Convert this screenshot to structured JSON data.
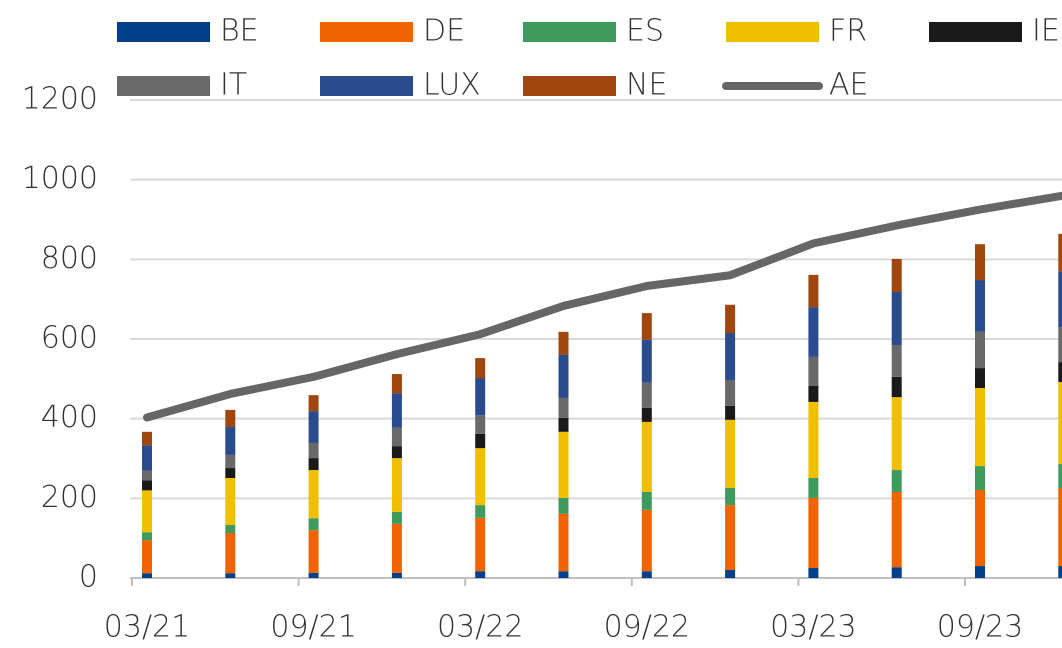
{
  "chart_data": {
    "type": "bar",
    "categories": [
      "03/21",
      null,
      "09/21",
      null,
      "03/22",
      null,
      "09/22",
      null,
      "03/23",
      null,
      "09/23",
      null
    ],
    "series": [
      {
        "name": "BE",
        "color": "#003f8a",
        "values": [
          12,
          12,
          13,
          13,
          17,
          17,
          17,
          20,
          25,
          27,
          30,
          30
        ]
      },
      {
        "name": "DE",
        "color": "#f06400",
        "values": [
          83,
          101,
          107,
          123,
          134,
          144,
          154,
          163,
          176,
          189,
          191,
          196
        ]
      },
      {
        "name": "ES",
        "color": "#3f9a5e",
        "values": [
          20,
          20,
          30,
          30,
          32,
          40,
          45,
          43,
          50,
          55,
          60,
          60
        ]
      },
      {
        "name": "FR",
        "color": "#f0c000",
        "values": [
          105,
          118,
          121,
          135,
          143,
          166,
          176,
          171,
          191,
          183,
          196,
          206
        ]
      },
      {
        "name": "IE",
        "color": "#1a1a1a",
        "values": [
          25,
          25,
          30,
          30,
          36,
          35,
          35,
          35,
          40,
          51,
          50,
          50
        ]
      },
      {
        "name": "IT",
        "color": "#696969",
        "values": [
          25,
          33,
          38,
          46,
          47,
          50,
          63,
          65,
          73,
          80,
          91,
          88
        ]
      },
      {
        "name": "LUX",
        "color": "#2a4c8c",
        "values": [
          63,
          70,
          80,
          87,
          93,
          108,
          108,
          118,
          125,
          133,
          130,
          140
        ]
      },
      {
        "name": "NE",
        "color": "#a0460f",
        "values": [
          34,
          43,
          40,
          48,
          50,
          58,
          67,
          71,
          81,
          83,
          90,
          94
        ]
      },
      {
        "name": "AE",
        "color": "#666666",
        "type": "line",
        "values": [
          403,
          462,
          505,
          562,
          612,
          683,
          733,
          760,
          840,
          885,
          925,
          960
        ]
      }
    ],
    "ylim": [
      0,
      1200
    ],
    "yticks": [
      0,
      200,
      400,
      600,
      800,
      1000,
      1200
    ],
    "grid": true,
    "legend": "top"
  }
}
